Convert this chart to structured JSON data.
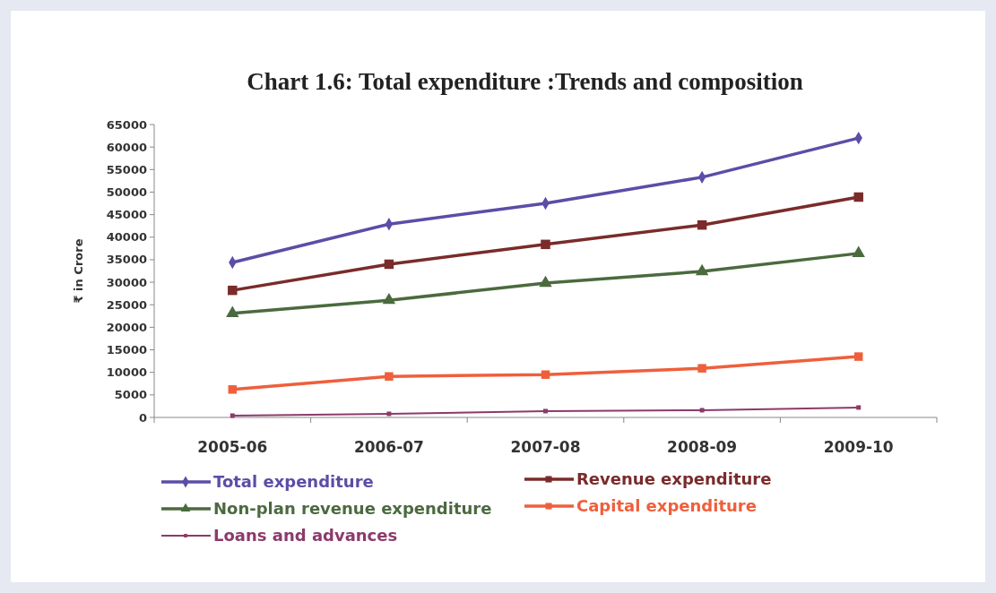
{
  "chart_data": {
    "type": "line",
    "title": "Chart 1.6: Total expenditure :Trends and composition",
    "ylabel": "₹ in Crore",
    "categories": [
      "2005-06",
      "2006-07",
      "2007-08",
      "2008-09",
      "2009-10"
    ],
    "ylim": [
      0,
      65000
    ],
    "yticks": [
      0,
      5000,
      10000,
      15000,
      20000,
      25000,
      30000,
      35000,
      40000,
      45000,
      50000,
      55000,
      60000,
      65000
    ],
    "grid": false,
    "legend": "bottom",
    "series": [
      {
        "name": "Total expenditure",
        "color": "#5a4ea6",
        "marker": "diamond",
        "values": [
          34400,
          42900,
          47500,
          53300,
          62000
        ]
      },
      {
        "name": "Revenue expenditure",
        "color": "#7a2b2b",
        "marker": "square",
        "values": [
          28200,
          34000,
          38400,
          42700,
          48900
        ]
      },
      {
        "name": "Non-plan revenue expenditure",
        "color": "#4b6a3f",
        "marker": "triangle",
        "values": [
          23100,
          26000,
          29800,
          32400,
          36400
        ]
      },
      {
        "name": "Capital expenditure",
        "color": "#ef5f3c",
        "marker": "square",
        "values": [
          6200,
          9100,
          9500,
          10900,
          13500
        ]
      },
      {
        "name": "Loans and advances",
        "color": "#8c3a6a",
        "marker": "square",
        "values": [
          400,
          800,
          1400,
          1600,
          2200
        ]
      }
    ]
  }
}
